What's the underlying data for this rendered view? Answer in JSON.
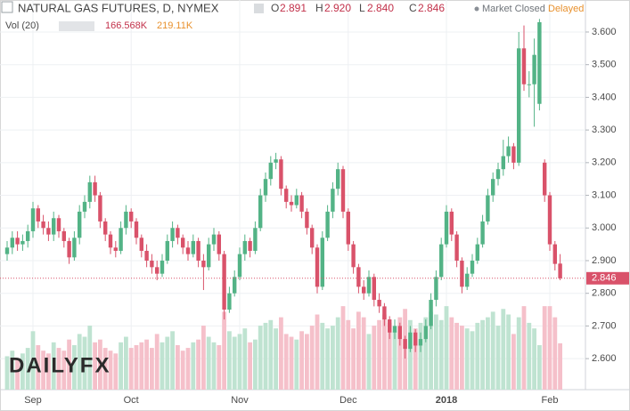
{
  "chart_data": {
    "type": "candlestick",
    "title": "NATURAL GAS FUTURES, D, NYMEX",
    "header": {
      "o_label": "O",
      "open": 2.891,
      "h_label": "H",
      "high": {
        "value": 2.92,
        "label": "2.920"
      },
      "l_label": "L",
      "low": {
        "value": 2.84,
        "label": "2.840"
      },
      "c_label": "C",
      "close": 2.846
    },
    "status": "Market Closed",
    "delay": "Delayed",
    "volume_title": "Vol (20)",
    "volume_last": {
      "value": 166.568,
      "label": "166.568K"
    },
    "volume_ma": {
      "value": 219.11,
      "label": "219.11K"
    },
    "logo": "DAILYFX",
    "up_color": "#53b386",
    "down_color": "#d9526a",
    "up_volume_color": "#bfe3d1",
    "down_volume_color": "#f5c0ca",
    "ylim": [
      2.505,
      3.698
    ],
    "yticks": [
      {
        "value": 2.6,
        "label": "2.600"
      },
      {
        "value": 2.7,
        "label": "2.700"
      },
      {
        "value": 2.8,
        "label": "2.800"
      },
      {
        "value": 2.9,
        "label": "2.900"
      },
      {
        "value": 3.0,
        "label": "3.000"
      },
      {
        "value": 3.1,
        "label": "3.100"
      },
      {
        "value": 3.2,
        "label": "3.200"
      },
      {
        "value": 3.3,
        "label": "3.300"
      },
      {
        "value": 3.4,
        "label": "3.400"
      },
      {
        "value": 3.5,
        "label": "3.500"
      },
      {
        "value": 3.6,
        "label": "3.600"
      }
    ],
    "y2lim": [
      0,
      1400
    ],
    "grid": true,
    "last_price_label": "2.846",
    "categories": [
      null,
      null,
      null,
      null,
      null,
      "Sep",
      null,
      null,
      null,
      null,
      null,
      null,
      null,
      null,
      null,
      null,
      null,
      null,
      null,
      null,
      null,
      null,
      null,
      null,
      "Oct",
      null,
      null,
      null,
      null,
      null,
      null,
      null,
      null,
      null,
      null,
      null,
      null,
      null,
      null,
      null,
      null,
      null,
      null,
      null,
      null,
      "Nov",
      null,
      null,
      null,
      null,
      null,
      null,
      null,
      null,
      null,
      null,
      null,
      null,
      null,
      null,
      null,
      null,
      null,
      null,
      null,
      null,
      "Dec",
      null,
      null,
      null,
      null,
      null,
      null,
      null,
      null,
      null,
      null,
      null,
      null,
      null,
      null,
      null,
      null,
      null,
      null,
      "2018",
      null,
      null,
      null,
      null,
      null,
      null,
      null,
      null,
      null,
      null,
      null,
      null,
      null,
      null,
      null,
      null,
      null,
      null,
      null,
      "Feb",
      null,
      null
    ],
    "ohlc": [
      [
        2.92,
        2.96,
        2.9,
        2.94
      ],
      [
        2.94,
        2.99,
        2.92,
        2.97
      ],
      [
        2.97,
        2.99,
        2.93,
        2.95
      ],
      [
        2.95,
        2.98,
        2.93,
        2.96
      ],
      [
        2.96,
        3.01,
        2.94,
        2.99
      ],
      [
        2.99,
        3.08,
        2.97,
        3.06
      ],
      [
        3.06,
        3.07,
        3.0,
        3.02
      ],
      [
        3.02,
        3.04,
        2.98,
        3.0
      ],
      [
        3.0,
        3.02,
        2.96,
        2.98
      ],
      [
        2.98,
        3.05,
        2.96,
        3.03
      ],
      [
        3.03,
        3.04,
        2.97,
        2.99
      ],
      [
        2.99,
        3.0,
        2.94,
        2.96
      ],
      [
        2.96,
        2.97,
        2.89,
        2.91
      ],
      [
        2.91,
        2.99,
        2.9,
        2.97
      ],
      [
        2.97,
        3.07,
        2.95,
        3.05
      ],
      [
        3.05,
        3.1,
        3.03,
        3.08
      ],
      [
        3.08,
        3.16,
        3.06,
        3.14
      ],
      [
        3.14,
        3.16,
        3.08,
        3.1
      ],
      [
        3.1,
        3.11,
        3.0,
        3.02
      ],
      [
        3.02,
        3.03,
        2.96,
        2.98
      ],
      [
        2.98,
        2.99,
        2.92,
        2.94
      ],
      [
        2.94,
        2.96,
        2.91,
        2.93
      ],
      [
        2.93,
        3.02,
        2.92,
        3.0
      ],
      [
        3.0,
        3.07,
        2.98,
        3.05
      ],
      [
        3.05,
        3.06,
        3.0,
        3.02
      ],
      [
        3.02,
        3.03,
        2.95,
        2.97
      ],
      [
        2.97,
        2.98,
        2.91,
        2.93
      ],
      [
        2.93,
        2.95,
        2.88,
        2.9
      ],
      [
        2.9,
        2.92,
        2.86,
        2.88
      ],
      [
        2.88,
        2.9,
        2.84,
        2.86
      ],
      [
        2.86,
        2.92,
        2.85,
        2.9
      ],
      [
        2.9,
        2.98,
        2.89,
        2.96
      ],
      [
        2.96,
        3.02,
        2.94,
        3.0
      ],
      [
        3.0,
        3.01,
        2.95,
        2.97
      ],
      [
        2.97,
        2.98,
        2.92,
        2.94
      ],
      [
        2.94,
        2.96,
        2.9,
        2.92
      ],
      [
        2.92,
        2.98,
        2.91,
        2.96
      ],
      [
        2.96,
        2.97,
        2.88,
        2.9
      ],
      [
        2.9,
        2.92,
        2.81,
        2.88
      ],
      [
        2.88,
        2.97,
        2.87,
        2.95
      ],
      [
        2.95,
        3.0,
        2.93,
        2.98
      ],
      [
        2.98,
        2.99,
        2.9,
        2.92
      ],
      [
        2.92,
        2.93,
        2.72,
        2.75
      ],
      [
        2.75,
        2.82,
        2.74,
        2.8
      ],
      [
        2.8,
        2.87,
        2.79,
        2.85
      ],
      [
        2.85,
        2.94,
        2.84,
        2.92
      ],
      [
        2.92,
        2.98,
        2.9,
        2.96
      ],
      [
        2.96,
        2.97,
        2.91,
        2.93
      ],
      [
        2.93,
        3.02,
        2.92,
        3.0
      ],
      [
        3.0,
        3.12,
        2.99,
        3.1
      ],
      [
        3.1,
        3.17,
        3.08,
        3.15
      ],
      [
        3.15,
        3.22,
        3.13,
        3.2
      ],
      [
        3.2,
        3.23,
        3.18,
        3.21
      ],
      [
        3.21,
        3.22,
        3.1,
        3.12
      ],
      [
        3.12,
        3.13,
        3.06,
        3.08
      ],
      [
        3.08,
        3.1,
        3.05,
        3.07
      ],
      [
        3.07,
        3.12,
        3.06,
        3.1
      ],
      [
        3.1,
        3.11,
        3.03,
        3.05
      ],
      [
        3.05,
        3.06,
        2.98,
        3.0
      ],
      [
        3.0,
        3.01,
        2.92,
        2.94
      ],
      [
        2.94,
        2.95,
        2.8,
        2.82
      ],
      [
        2.82,
        2.99,
        2.81,
        2.97
      ],
      [
        2.97,
        3.07,
        2.96,
        3.05
      ],
      [
        3.05,
        3.14,
        3.03,
        3.12
      ],
      [
        3.12,
        3.2,
        3.1,
        3.18
      ],
      [
        3.18,
        3.19,
        3.03,
        3.05
      ],
      [
        3.05,
        3.06,
        2.93,
        2.95
      ],
      [
        2.95,
        2.96,
        2.86,
        2.88
      ],
      [
        2.88,
        2.89,
        2.8,
        2.82
      ],
      [
        2.82,
        2.84,
        2.78,
        2.8
      ],
      [
        2.8,
        2.87,
        2.79,
        2.85
      ],
      [
        2.85,
        2.86,
        2.76,
        2.78
      ],
      [
        2.78,
        2.8,
        2.74,
        2.76
      ],
      [
        2.76,
        2.77,
        2.7,
        2.72
      ],
      [
        2.72,
        2.73,
        2.66,
        2.68
      ],
      [
        2.68,
        2.72,
        2.66,
        2.7
      ],
      [
        2.7,
        2.71,
        2.64,
        2.66
      ],
      [
        2.66,
        2.67,
        2.6,
        2.63
      ],
      [
        2.63,
        2.7,
        2.62,
        2.68
      ],
      [
        2.68,
        2.69,
        2.62,
        2.64
      ],
      [
        2.64,
        2.68,
        2.62,
        2.66
      ],
      [
        2.66,
        2.72,
        2.65,
        2.7
      ],
      [
        2.7,
        2.8,
        2.69,
        2.78
      ],
      [
        2.78,
        2.87,
        2.76,
        2.85
      ],
      [
        2.85,
        2.97,
        2.84,
        2.95
      ],
      [
        2.95,
        3.07,
        2.94,
        3.05
      ],
      [
        3.05,
        3.06,
        2.96,
        2.98
      ],
      [
        2.98,
        2.99,
        2.88,
        2.9
      ],
      [
        2.9,
        2.91,
        2.8,
        2.82
      ],
      [
        2.82,
        2.88,
        2.81,
        2.86
      ],
      [
        2.86,
        2.92,
        2.85,
        2.9
      ],
      [
        2.9,
        2.97,
        2.89,
        2.95
      ],
      [
        2.95,
        3.04,
        2.94,
        3.02
      ],
      [
        3.02,
        3.12,
        3.01,
        3.1
      ],
      [
        3.1,
        3.17,
        3.08,
        3.15
      ],
      [
        3.15,
        3.2,
        3.13,
        3.18
      ],
      [
        3.18,
        3.27,
        3.16,
        3.22
      ],
      [
        3.22,
        3.28,
        3.2,
        3.25
      ],
      [
        3.25,
        3.26,
        3.18,
        3.2
      ],
      [
        3.2,
        3.6,
        3.19,
        3.55
      ],
      [
        3.55,
        3.62,
        3.42,
        3.44
      ],
      [
        3.44,
        3.48,
        3.4,
        3.44
      ],
      [
        3.44,
        3.58,
        3.31,
        3.53
      ],
      [
        3.38,
        3.64,
        3.36,
        3.63
      ],
      [
        3.2,
        3.21,
        3.08,
        3.1
      ],
      [
        3.1,
        3.11,
        2.93,
        2.95
      ],
      [
        2.95,
        2.96,
        2.87,
        2.89
      ],
      [
        2.891,
        2.92,
        2.84,
        2.846
      ]
    ],
    "volume": [
      120,
      140,
      110,
      130,
      150,
      210,
      160,
      140,
      130,
      170,
      150,
      140,
      180,
      160,
      200,
      190,
      230,
      170,
      180,
      150,
      140,
      130,
      170,
      190,
      150,
      160,
      170,
      180,
      150,
      200,
      170,
      190,
      210,
      160,
      140,
      150,
      170,
      180,
      230,
      190,
      170,
      160,
      280,
      210,
      190,
      200,
      220,
      170,
      180,
      230,
      240,
      250,
      220,
      260,
      200,
      190,
      180,
      210,
      200,
      230,
      270,
      240,
      220,
      230,
      260,
      300,
      250,
      220,
      280,
      260,
      200,
      230,
      250,
      270,
      240,
      210,
      260,
      290,
      250,
      220,
      240,
      260,
      280,
      270,
      250,
      300,
      260,
      240,
      230,
      220,
      210,
      240,
      250,
      260,
      280,
      230,
      290,
      270,
      200,
      260,
      300,
      240,
      220,
      160,
      300,
      300,
      260,
      166.568
    ]
  }
}
